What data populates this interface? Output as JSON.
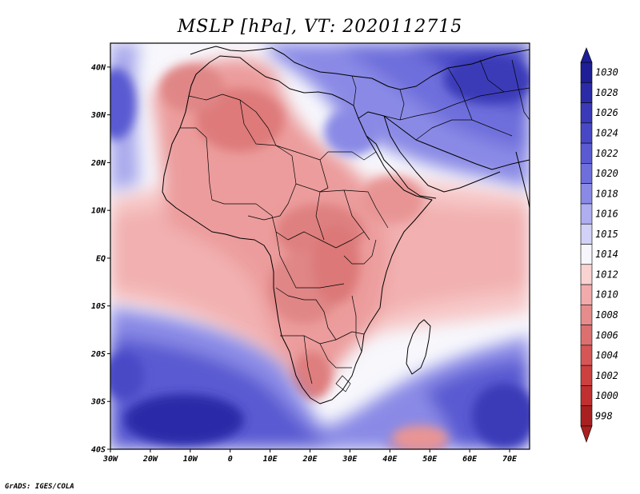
{
  "title": "MSLP [hPa], VT: 2020112715",
  "credit": "GrADS: IGES/COLA",
  "map": {
    "projection": "latlon",
    "region": "Africa",
    "lon_range": [
      -30,
      75
    ],
    "lat_range": [
      -40,
      45
    ]
  },
  "axes": {
    "x_ticks": [
      {
        "label": "30W",
        "lon": -30
      },
      {
        "label": "20W",
        "lon": -20
      },
      {
        "label": "10W",
        "lon": -10
      },
      {
        "label": "0",
        "lon": 0
      },
      {
        "label": "10E",
        "lon": 10
      },
      {
        "label": "20E",
        "lon": 20
      },
      {
        "label": "30E",
        "lon": 30
      },
      {
        "label": "40E",
        "lon": 40
      },
      {
        "label": "50E",
        "lon": 50
      },
      {
        "label": "60E",
        "lon": 60
      },
      {
        "label": "70E",
        "lon": 70
      }
    ],
    "y_ticks": [
      {
        "label": "40N",
        "lat": 40
      },
      {
        "label": "30N",
        "lat": 30
      },
      {
        "label": "20N",
        "lat": 20
      },
      {
        "label": "10N",
        "lat": 10
      },
      {
        "label": "EQ",
        "lat": 0
      },
      {
        "label": "10S",
        "lat": -10
      },
      {
        "label": "20S",
        "lat": -20
      },
      {
        "label": "30S",
        "lat": -30
      },
      {
        "label": "40S",
        "lat": -40
      }
    ]
  },
  "colorbar": {
    "levels": [
      {
        "label": "1030",
        "color": "#1e1e96"
      },
      {
        "label": "1028",
        "color": "#2b2ba8"
      },
      {
        "label": "1026",
        "color": "#3a3ab8"
      },
      {
        "label": "1024",
        "color": "#4848c6"
      },
      {
        "label": "1022",
        "color": "#5a5ad2"
      },
      {
        "label": "1020",
        "color": "#6e6edc"
      },
      {
        "label": "1018",
        "color": "#8a8ae6"
      },
      {
        "label": "1016",
        "color": "#aeaef0"
      },
      {
        "label": "1015",
        "color": "#d2d2f8"
      },
      {
        "label": "1014",
        "color": "#f6f6fc"
      },
      {
        "label": "1012",
        "color": "#fad2d2"
      },
      {
        "label": "1010",
        "color": "#f2aaaa"
      },
      {
        "label": "1008",
        "color": "#e68c8c"
      },
      {
        "label": "1006",
        "color": "#dc7070"
      },
      {
        "label": "1004",
        "color": "#d65656"
      },
      {
        "label": "1002",
        "color": "#cc4040"
      },
      {
        "label": "1000",
        "color": "#c03030"
      },
      {
        "label": "998",
        "color": "#a82020"
      }
    ]
  }
}
